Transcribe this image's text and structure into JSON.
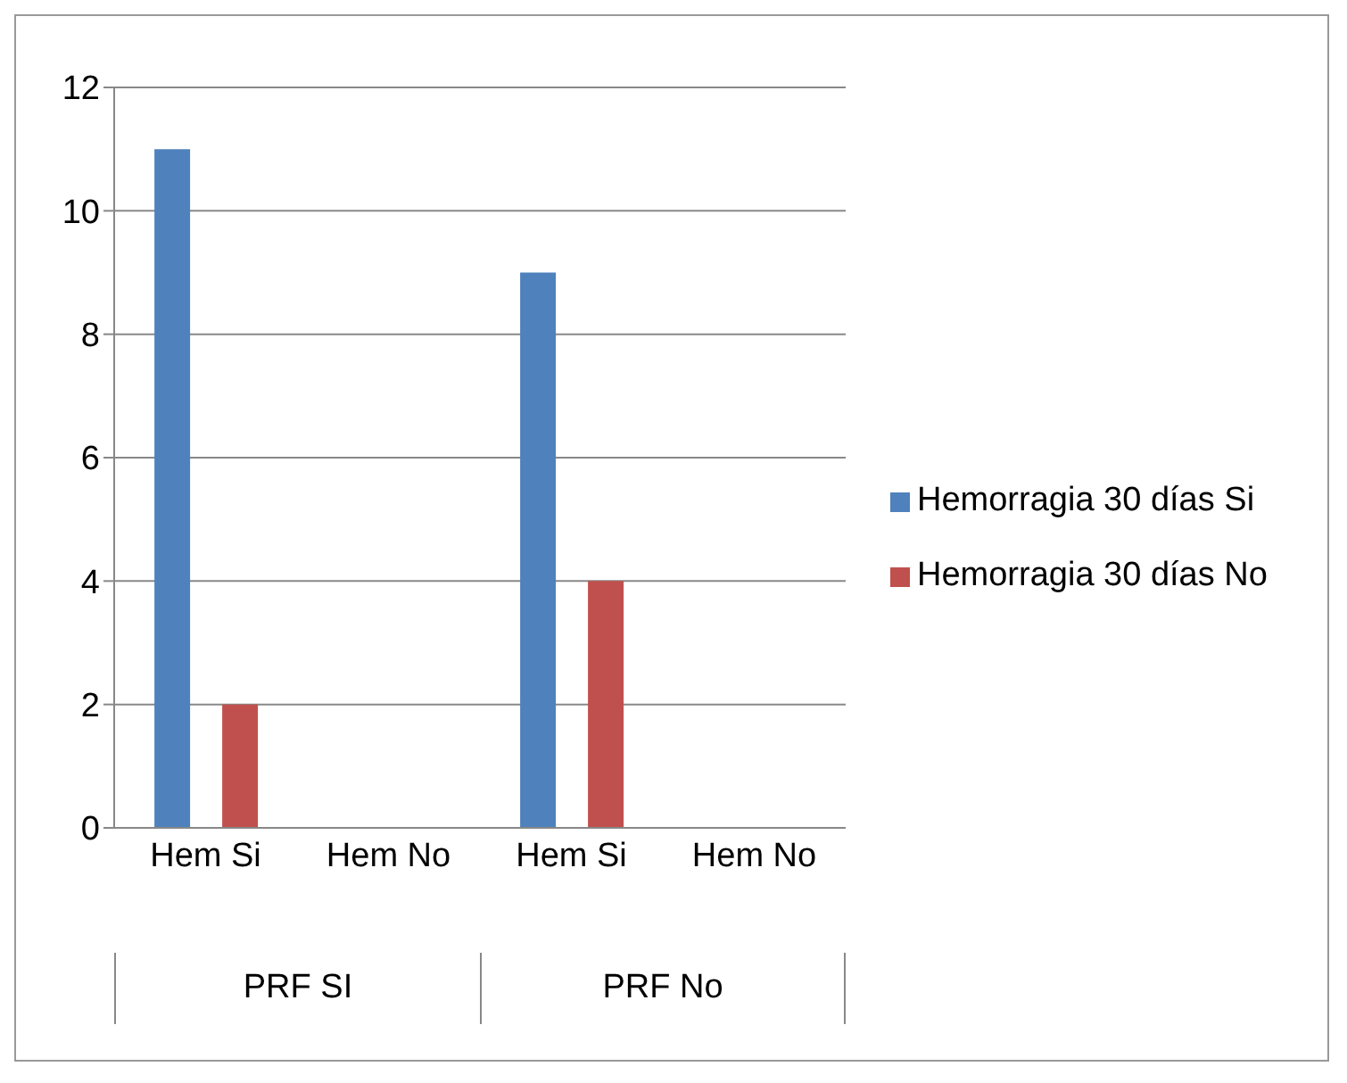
{
  "chart_data": {
    "type": "bar",
    "categories": [
      "Hem Si",
      "Hem No",
      "Hem Si",
      "Hem No"
    ],
    "series": [
      {
        "name": "Hemorragia 30 días Si",
        "color": "#4f81bd",
        "values": [
          11,
          0,
          9,
          0
        ]
      },
      {
        "name": "Hemorragia 30 días No",
        "color": "#c0504d",
        "values": [
          2,
          0,
          4,
          0
        ]
      }
    ],
    "annotations": [
      "PRF SI",
      "PRF No"
    ],
    "ylim": [
      0,
      12
    ],
    "yticks": [
      0,
      2,
      4,
      6,
      8,
      10,
      12
    ],
    "grid": "y",
    "legend": "right"
  }
}
